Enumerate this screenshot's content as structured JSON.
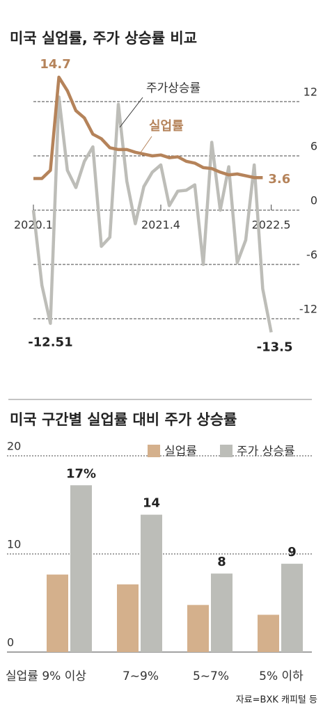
{
  "charts": [
    {
      "type": "line",
      "title": "미국 실업률, 주가 상승률 비교",
      "categories": [
        "2020.1",
        null,
        null,
        null,
        null,
        null,
        null,
        null,
        null,
        null,
        null,
        null,
        null,
        null,
        null,
        "2021.4",
        null,
        null,
        null,
        null,
        null,
        null,
        null,
        null,
        null,
        null,
        null,
        null,
        "2022.5"
      ],
      "ylim": [
        -14,
        16
      ],
      "yticks": [
        12,
        6,
        0,
        -6,
        -12
      ],
      "grid": true,
      "series": [
        {
          "name": "주가상승률",
          "color": "#bdbdb8",
          "values": [
            0,
            -8.3,
            -12.51,
            12.5,
            4.4,
            2.5,
            5.4,
            7.0,
            -4.0,
            -3.0,
            11.7,
            3.2,
            -1.5,
            2.6,
            4.2,
            5.0,
            0.5,
            2.1,
            2.2,
            2.8,
            -6.0,
            7.5,
            0,
            4.8,
            -5.8,
            -3.3,
            5.0,
            -8.7,
            -13.5
          ]
        },
        {
          "name": "실업률",
          "color": "#b5835a",
          "values": [
            3.5,
            3.5,
            4.4,
            14.7,
            13.2,
            11.0,
            10.2,
            8.4,
            7.9,
            6.9,
            6.7,
            6.7,
            6.4,
            6.2,
            6.0,
            6.1,
            5.8,
            5.9,
            5.4,
            5.2,
            4.7,
            4.6,
            4.2,
            3.9,
            4.0,
            3.8,
            3.6,
            3.6,
            null
          ]
        }
      ]
    },
    {
      "type": "bar",
      "title": "미국 구간별 실업률 대비 주가 상승률",
      "categories": [
        "실업률 9% 이상",
        "7~9%",
        "5~7%",
        "5% 이하"
      ],
      "ylim": [
        0,
        20
      ],
      "yticks": [
        0,
        10,
        20
      ],
      "grid": true,
      "legend": "top-right",
      "series": [
        {
          "name": "실업률",
          "color": "#d4b08c",
          "values": [
            7.9,
            6.9,
            4.8,
            3.8
          ]
        },
        {
          "name": "주가 상승률",
          "color": "#bcbdb8",
          "values": [
            17,
            14,
            8,
            9
          ],
          "value_labels": [
            "17%",
            "14",
            "8",
            "9"
          ]
        }
      ]
    }
  ],
  "source": "자료=BXK 캐피털 등"
}
